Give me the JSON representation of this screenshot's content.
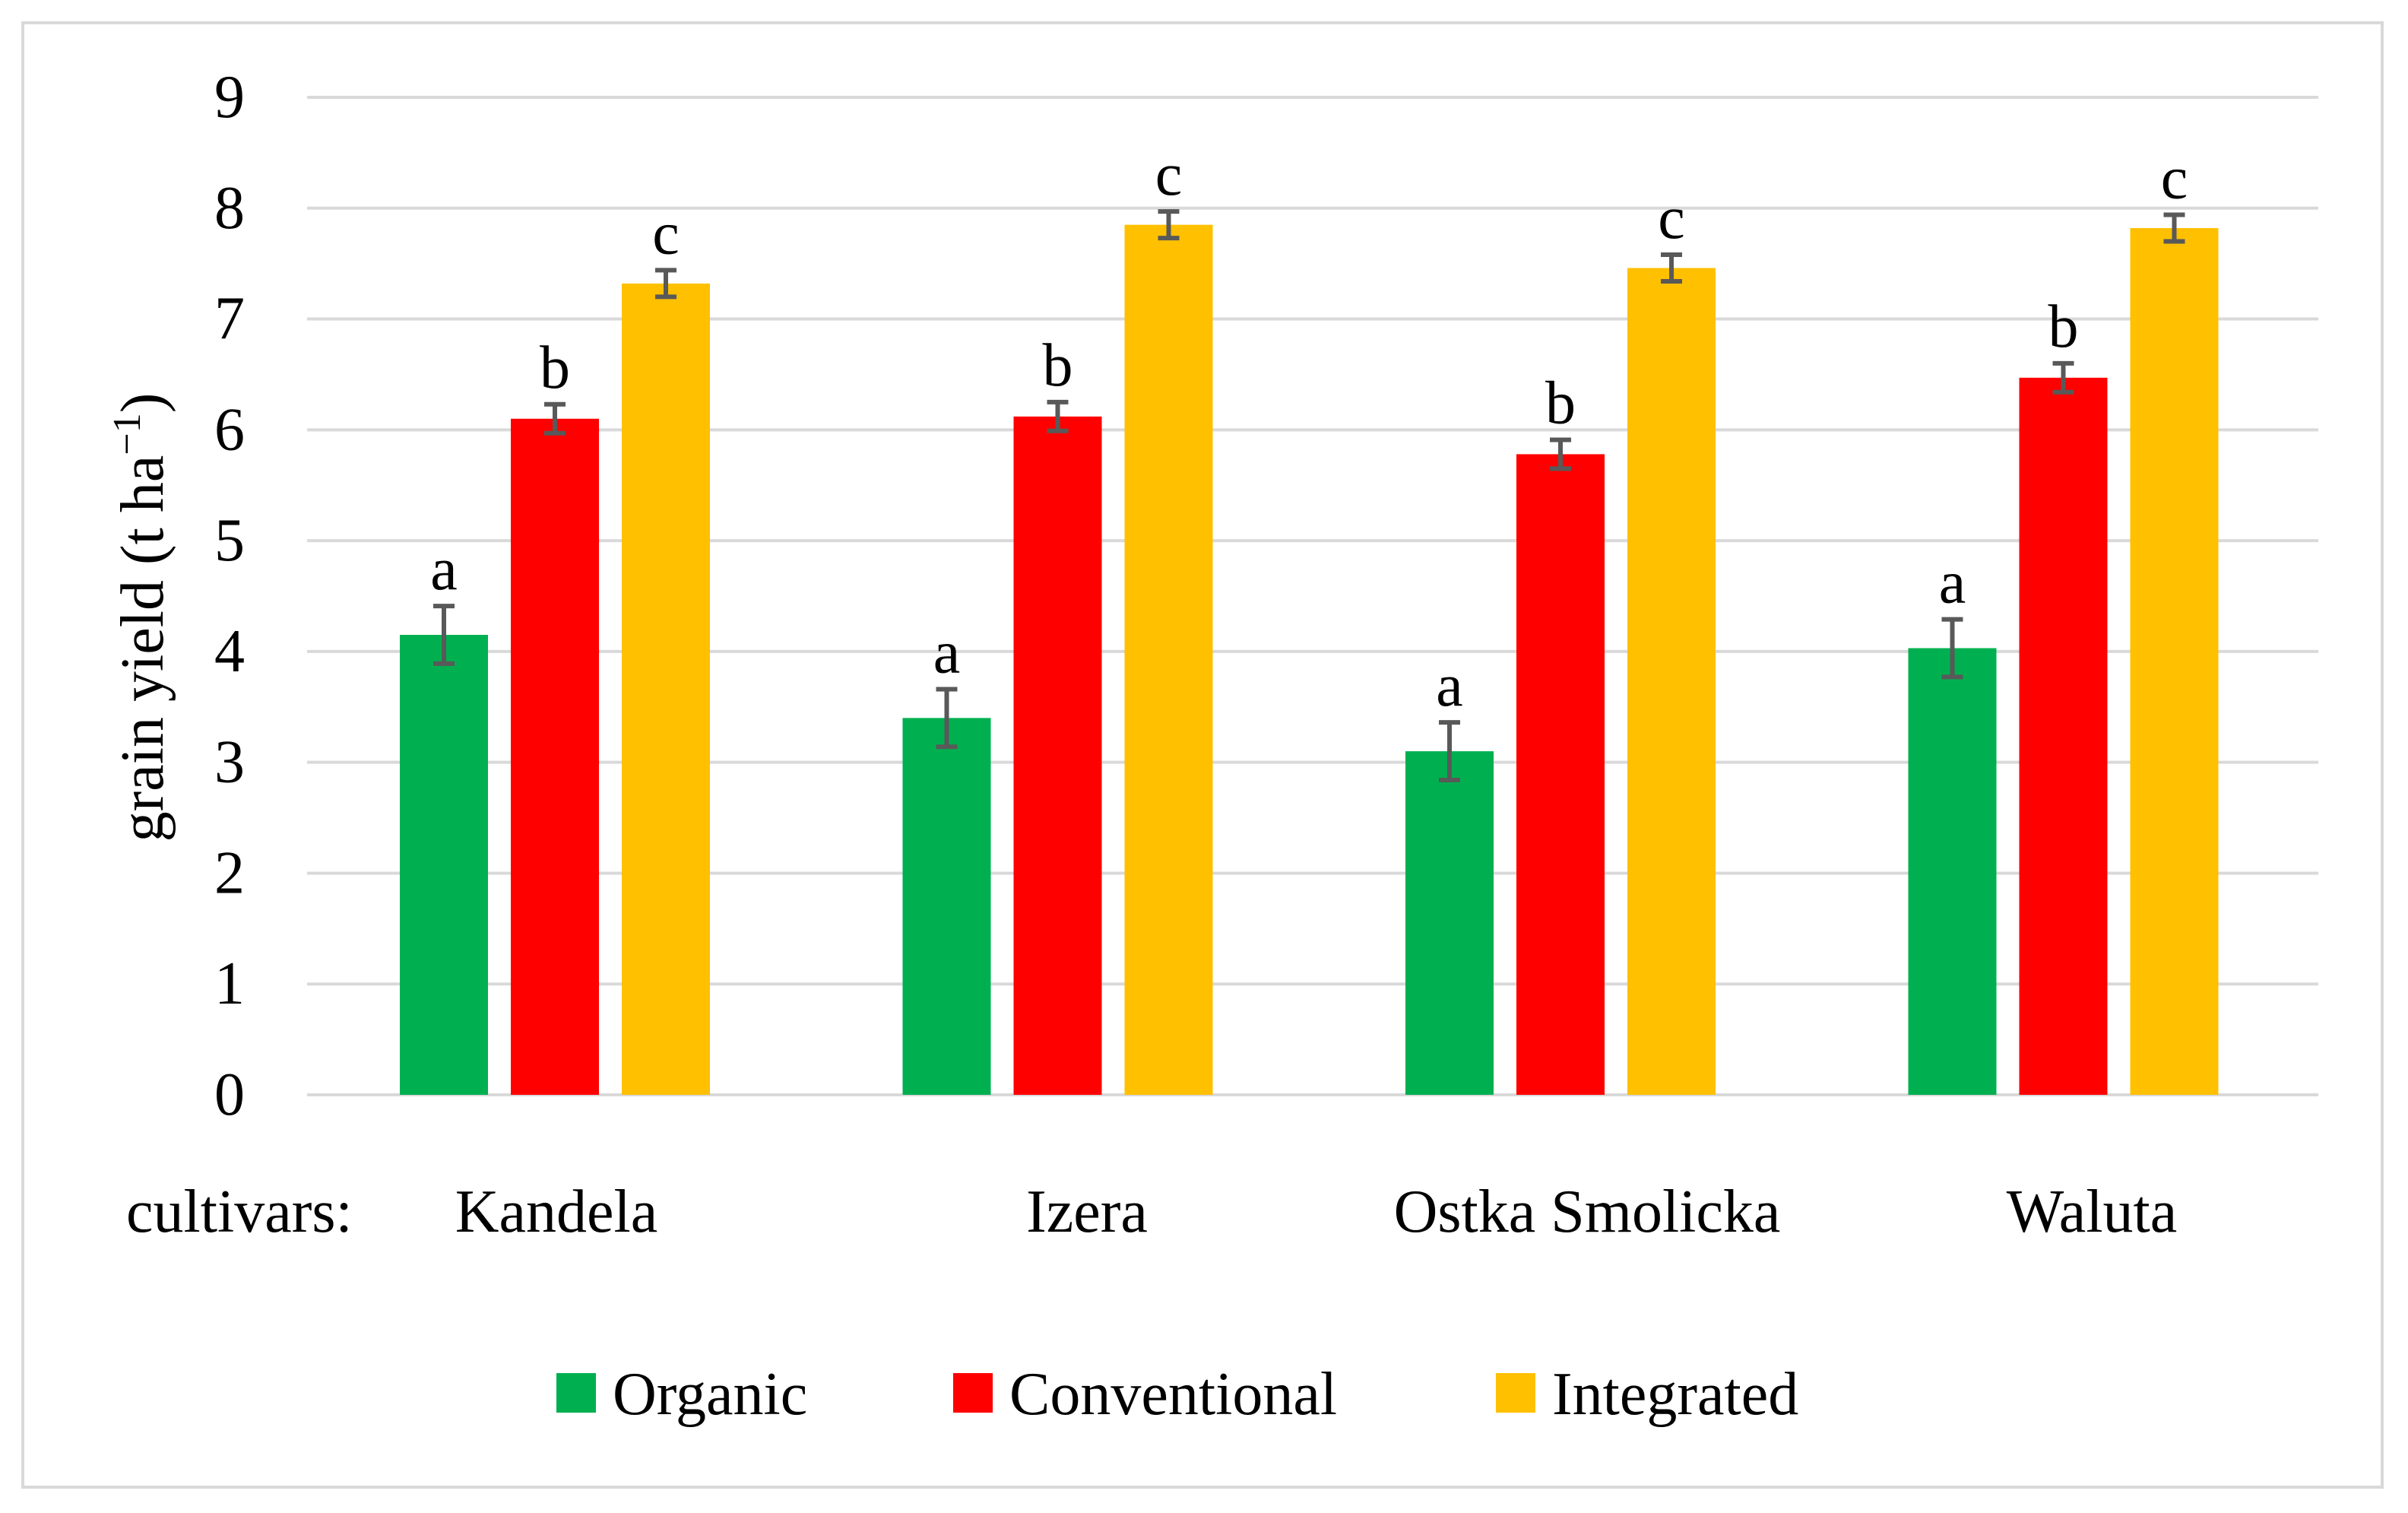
{
  "chart_data": {
    "type": "bar",
    "title": "",
    "xlabel": "",
    "ylabel_main": "grain yield (t ha",
    "ylabel_sup": "−1",
    "ylabel_close": ")",
    "x_prefix": "cultivars:",
    "categories": [
      "Kandela",
      "Izera",
      "Ostka Smolicka",
      "Waluta"
    ],
    "ylim": [
      0,
      9
    ],
    "yticks": [
      "0",
      "1",
      "2",
      "3",
      "4",
      "5",
      "6",
      "7",
      "8",
      "9"
    ],
    "grid": true,
    "legend_position": "bottom",
    "series": [
      {
        "name": "Organic",
        "color": "#00b050",
        "values": [
          4.15,
          3.4,
          3.1,
          4.03
        ],
        "errors": [
          0.26,
          0.26,
          0.26,
          0.26
        ],
        "letters": [
          "a",
          "a",
          "a",
          "a"
        ]
      },
      {
        "name": "Conventional",
        "color": "#ff0000",
        "values": [
          6.1,
          6.12,
          5.78,
          6.47
        ],
        "errors": [
          0.13,
          0.13,
          0.13,
          0.13
        ],
        "letters": [
          "b",
          "b",
          "b",
          "b"
        ]
      },
      {
        "name": "Integrated",
        "color": "#ffc000",
        "values": [
          7.32,
          7.85,
          7.46,
          7.82
        ],
        "errors": [
          0.12,
          0.12,
          0.12,
          0.12
        ],
        "letters": [
          "c",
          "c",
          "c",
          "c"
        ]
      }
    ]
  }
}
